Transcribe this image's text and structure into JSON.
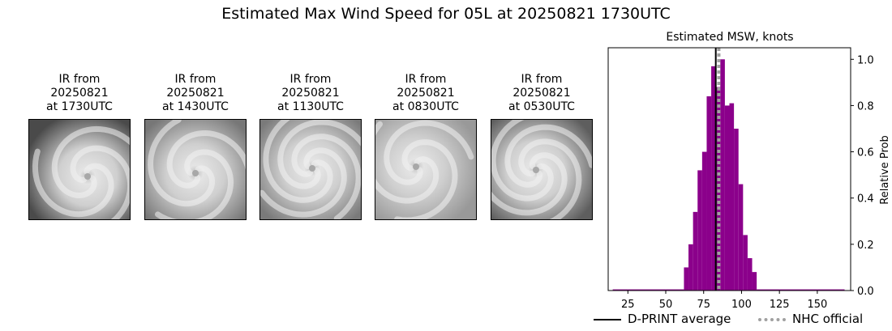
{
  "title": "Estimated Max Wind Speed for 05L at 20250821 1730UTC",
  "panels": [
    {
      "l1": "IR from",
      "l2": "20250821",
      "l3": "at 1730UTC"
    },
    {
      "l1": "IR from",
      "l2": "20250821",
      "l3": "at 1430UTC"
    },
    {
      "l1": "IR from",
      "l2": "20250821",
      "l3": "at 1130UTC"
    },
    {
      "l1": "IR from",
      "l2": "20250821",
      "l3": "at 0830UTC"
    },
    {
      "l1": "IR from",
      "l2": "20250821",
      "l3": "at 0530UTC"
    }
  ],
  "chart_data": {
    "type": "bar",
    "title": "Estimated MSW, knots",
    "ylabel": "Relative Prob",
    "xlim": [
      12,
      172
    ],
    "ylim": [
      0,
      1.05
    ],
    "xticks": [
      25,
      50,
      75,
      100,
      125,
      150
    ],
    "yticks": [
      0.0,
      0.2,
      0.4,
      0.6,
      0.8,
      1.0
    ],
    "bar_color": "#8b008b",
    "bins": [
      {
        "x0": 15,
        "x1": 62,
        "value": 0.005
      },
      {
        "x0": 62,
        "x1": 65,
        "value": 0.1
      },
      {
        "x0": 65,
        "x1": 68,
        "value": 0.2
      },
      {
        "x0": 68,
        "x1": 71,
        "value": 0.34
      },
      {
        "x0": 71,
        "x1": 74,
        "value": 0.52
      },
      {
        "x0": 74,
        "x1": 77,
        "value": 0.6
      },
      {
        "x0": 77,
        "x1": 80,
        "value": 0.84
      },
      {
        "x0": 80,
        "x1": 83,
        "value": 0.97
      },
      {
        "x0": 83,
        "x1": 86,
        "value": 0.88
      },
      {
        "x0": 86,
        "x1": 89,
        "value": 1.0
      },
      {
        "x0": 89,
        "x1": 92,
        "value": 0.8
      },
      {
        "x0": 92,
        "x1": 95,
        "value": 0.81
      },
      {
        "x0": 95,
        "x1": 98,
        "value": 0.7
      },
      {
        "x0": 98,
        "x1": 101,
        "value": 0.46
      },
      {
        "x0": 101,
        "x1": 104,
        "value": 0.24
      },
      {
        "x0": 104,
        "x1": 107,
        "value": 0.14
      },
      {
        "x0": 107,
        "x1": 110,
        "value": 0.08
      },
      {
        "x0": 110,
        "x1": 168,
        "value": 0.005
      }
    ],
    "dprint_avg": 83,
    "nhc_official": 85,
    "legend": {
      "dprint": "D-PRINT average",
      "nhc": "NHC official"
    },
    "colors": {
      "dprint": "#000000",
      "nhc": "#a0a0a0"
    }
  }
}
